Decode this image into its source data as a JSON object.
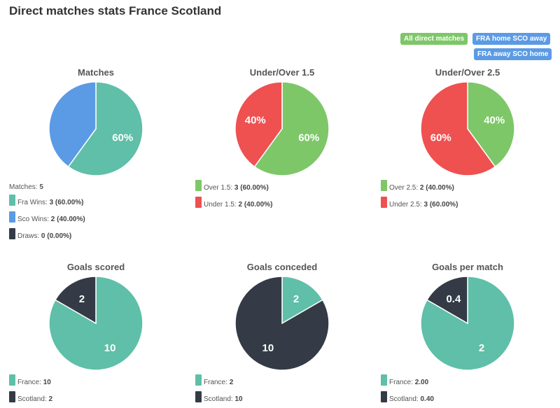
{
  "page": {
    "title": "Direct matches stats France Scotland"
  },
  "filters": [
    {
      "id": "btn-all",
      "label": "All direct matches",
      "color": "#7dc768"
    },
    {
      "id": "btn-home",
      "label": "FRA home SCO away",
      "color": "#5b9be5"
    },
    {
      "id": "btn-away",
      "label": "FRA away SCO home",
      "color": "#5b9be5"
    }
  ],
  "chart_data": [
    {
      "type": "pie",
      "title": "Matches",
      "slices": [
        {
          "name": "Fra Wins",
          "value": 3,
          "label": "60%",
          "color": "#5fbfa8"
        },
        {
          "name": "Sco Wins",
          "value": 2,
          "label": "",
          "color": "#5b9be5"
        },
        {
          "name": "Draws",
          "value": 0,
          "label": "",
          "color": "#343b46"
        }
      ],
      "legend_header": {
        "label": "Matches:",
        "value": "5"
      },
      "legend": [
        {
          "label": "Fra Wins:",
          "value": "3 (60.00%)",
          "color": "#5fbfa8"
        },
        {
          "label": "Sco Wins:",
          "value": "2 (40.00%)",
          "color": "#5b9be5"
        },
        {
          "label": "Draws:",
          "value": "0 (0.00%)",
          "color": "#343b46"
        }
      ]
    },
    {
      "type": "pie",
      "title": "Under/Over 1.5",
      "slices": [
        {
          "name": "Over 1.5",
          "value": 3,
          "label": "60%",
          "color": "#7dc768"
        },
        {
          "name": "Under 1.5",
          "value": 2,
          "label": "40%",
          "color": "#ef5050"
        }
      ],
      "legend": [
        {
          "label": "Over 1.5:",
          "value": "3 (60.00%)",
          "color": "#7dc768"
        },
        {
          "label": "Under 1.5:",
          "value": "2 (40.00%)",
          "color": "#ef5050"
        }
      ]
    },
    {
      "type": "pie",
      "title": "Under/Over 2.5",
      "slices": [
        {
          "name": "Over 2.5",
          "value": 2,
          "label": "40%",
          "color": "#7dc768"
        },
        {
          "name": "Under 2.5",
          "value": 3,
          "label": "60%",
          "color": "#ef5050"
        }
      ],
      "legend": [
        {
          "label": "Over 2.5:",
          "value": "2 (40.00%)",
          "color": "#7dc768"
        },
        {
          "label": "Under 2.5:",
          "value": "3 (60.00%)",
          "color": "#ef5050"
        }
      ]
    },
    {
      "type": "pie",
      "title": "Goals scored",
      "slices": [
        {
          "name": "France",
          "value": 10,
          "label": "10",
          "color": "#5fbfa8"
        },
        {
          "name": "Scotland",
          "value": 2,
          "label": "2",
          "color": "#343b46"
        }
      ],
      "legend": [
        {
          "label": "France:",
          "value": "10",
          "color": "#5fbfa8"
        },
        {
          "label": "Scotland:",
          "value": "2",
          "color": "#343b46"
        }
      ]
    },
    {
      "type": "pie",
      "title": "Goals conceded",
      "slices": [
        {
          "name": "France",
          "value": 2,
          "label": "2",
          "color": "#5fbfa8"
        },
        {
          "name": "Scotland",
          "value": 10,
          "label": "10",
          "color": "#343b46"
        }
      ],
      "legend": [
        {
          "label": "France:",
          "value": "2",
          "color": "#5fbfa8"
        },
        {
          "label": "Scotland:",
          "value": "10",
          "color": "#343b46"
        }
      ]
    },
    {
      "type": "pie",
      "title": "Goals per match",
      "slices": [
        {
          "name": "France",
          "value": 2.0,
          "label": "2",
          "color": "#5fbfa8"
        },
        {
          "name": "Scotland",
          "value": 0.4,
          "label": "0.4",
          "color": "#343b46"
        }
      ],
      "legend": [
        {
          "label": "France:",
          "value": "2.00",
          "color": "#5fbfa8"
        },
        {
          "label": "Scotland:",
          "value": "0.40",
          "color": "#343b46"
        }
      ]
    }
  ]
}
